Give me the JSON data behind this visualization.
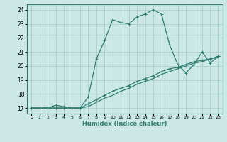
{
  "xlabel": "Humidex (Indice chaleur)",
  "ylabel": "",
  "bg_color": "#cce8e6",
  "grid_color": "#aad0cd",
  "line_color": "#2e7d6e",
  "xlim": [
    -0.5,
    23.5
  ],
  "ylim": [
    16.6,
    24.4
  ],
  "xticks": [
    0,
    1,
    2,
    3,
    4,
    5,
    6,
    7,
    8,
    9,
    10,
    11,
    12,
    13,
    14,
    15,
    16,
    17,
    18,
    19,
    20,
    21,
    22,
    23
  ],
  "yticks": [
    17,
    18,
    19,
    20,
    21,
    22,
    23,
    24
  ],
  "line1_x": [
    0,
    1,
    2,
    3,
    4,
    5,
    6,
    7,
    8,
    9,
    10,
    11,
    12,
    13,
    14,
    15,
    16,
    17,
    18,
    19,
    20,
    21,
    22,
    23
  ],
  "line1_y": [
    17,
    17,
    17,
    17.2,
    17.1,
    17,
    17,
    17.8,
    20.5,
    21.8,
    23.3,
    23.1,
    23.0,
    23.5,
    23.7,
    24.0,
    23.7,
    21.5,
    20.1,
    19.5,
    20.1,
    21.0,
    20.2,
    20.7
  ],
  "line2_x": [
    0,
    1,
    2,
    3,
    4,
    5,
    6,
    7,
    8,
    9,
    10,
    11,
    12,
    13,
    14,
    15,
    16,
    17,
    18,
    19,
    20,
    21,
    22,
    23
  ],
  "line2_y": [
    17,
    17,
    17,
    17,
    17,
    17,
    17,
    17.3,
    17.6,
    17.9,
    18.2,
    18.4,
    18.6,
    18.9,
    19.1,
    19.3,
    19.6,
    19.8,
    19.9,
    20.1,
    20.3,
    20.4,
    20.5,
    20.7
  ],
  "line3_x": [
    0,
    1,
    2,
    3,
    4,
    5,
    6,
    7,
    8,
    9,
    10,
    11,
    12,
    13,
    14,
    15,
    16,
    17,
    18,
    19,
    20,
    21,
    22,
    23
  ],
  "line3_y": [
    17,
    17,
    17,
    17,
    17,
    17,
    17,
    17.1,
    17.4,
    17.7,
    17.9,
    18.2,
    18.4,
    18.7,
    18.9,
    19.1,
    19.4,
    19.6,
    19.8,
    20.0,
    20.2,
    20.3,
    20.5,
    20.6
  ]
}
